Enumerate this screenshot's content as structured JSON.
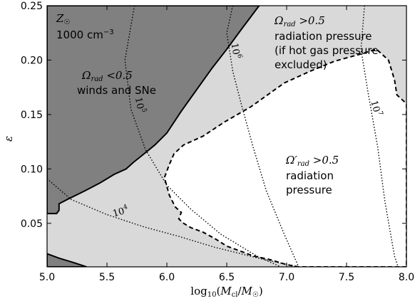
{
  "chart_data": {
    "type": "area",
    "xlabel": "log10(Mcl/M☉)",
    "ylabel": "ε",
    "xlim": [
      5.0,
      8.0
    ],
    "ylim": [
      0.01,
      0.25
    ],
    "x_ticks": [
      "5.0",
      "5.5",
      "6.0",
      "6.5",
      "7.0",
      "7.5",
      "8.0"
    ],
    "y_ticks": [
      "0.05",
      "0.10",
      "0.15",
      "0.20",
      "0.25"
    ],
    "grid": false,
    "corner_label_1": "Z☉",
    "corner_label_2": "1000 cm",
    "corner_label_2_exp": "−3",
    "regions": [
      {
        "name": "winds and SNe",
        "label_math": "Ωrad < 0.5",
        "label_text": "winds and SNe",
        "fill": "#808080",
        "boundary": [
          [
            5.0,
            0.084
          ],
          [
            5.0,
            0.25
          ],
          [
            6.77,
            0.25
          ],
          [
            6.62,
            0.228
          ],
          [
            6.5,
            0.21
          ],
          [
            6.38,
            0.193
          ],
          [
            6.25,
            0.173
          ],
          [
            6.12,
            0.153
          ],
          [
            6.0,
            0.133
          ],
          [
            5.9,
            0.122
          ],
          [
            5.8,
            0.113
          ],
          [
            5.72,
            0.106
          ],
          [
            5.66,
            0.1
          ],
          [
            5.56,
            0.095
          ],
          [
            5.44,
            0.087
          ],
          [
            5.3,
            0.079
          ],
          [
            5.17,
            0.072
          ],
          [
            5.1,
            0.068
          ],
          [
            5.1,
            0.062
          ],
          [
            5.08,
            0.059
          ],
          [
            5.0,
            0.059
          ]
        ]
      },
      {
        "name": "radiation pressure (hot gas excluded)",
        "label_math": "Ωrad > 0.5",
        "label_text": [
          "radiation pressure",
          "(if hot gas pressure",
          "excluded)"
        ],
        "fill": "#d9d9d9"
      },
      {
        "name": "radiation pressure",
        "label_math": "Ω′rad > 0.5",
        "label_text": [
          "radiation",
          "pressure"
        ],
        "fill": "#ffffff",
        "boundary": [
          [
            8.0,
            0.01
          ],
          [
            7.1,
            0.01
          ],
          [
            7.0,
            0.012
          ],
          [
            6.85,
            0.017
          ],
          [
            6.72,
            0.02
          ],
          [
            6.65,
            0.023
          ],
          [
            6.5,
            0.029
          ],
          [
            6.4,
            0.036
          ],
          [
            6.3,
            0.042
          ],
          [
            6.2,
            0.046
          ],
          [
            6.14,
            0.05
          ],
          [
            6.1,
            0.054
          ],
          [
            6.12,
            0.06
          ],
          [
            6.07,
            0.065
          ],
          [
            6.02,
            0.076
          ],
          [
            5.98,
            0.092
          ],
          [
            6.02,
            0.104
          ],
          [
            6.06,
            0.114
          ],
          [
            6.14,
            0.122
          ],
          [
            6.3,
            0.13
          ],
          [
            6.48,
            0.143
          ],
          [
            6.7,
            0.157
          ],
          [
            6.84,
            0.168
          ],
          [
            6.98,
            0.179
          ],
          [
            7.2,
            0.19
          ],
          [
            7.4,
            0.199
          ],
          [
            7.6,
            0.205
          ],
          [
            7.75,
            0.21
          ],
          [
            7.85,
            0.2
          ],
          [
            7.9,
            0.182
          ],
          [
            7.92,
            0.168
          ],
          [
            8.0,
            0.16
          ]
        ]
      }
    ],
    "bottom_band": {
      "fill": "#808080",
      "boundary": [
        [
          5.0,
          0.01
        ],
        [
          5.0,
          0.022
        ],
        [
          5.1,
          0.018
        ],
        [
          5.22,
          0.014
        ],
        [
          5.33,
          0.01
        ]
      ]
    },
    "mass_contours": [
      {
        "label": "10",
        "exp": "4",
        "points": [
          [
            5.0,
            0.091
          ],
          [
            5.2,
            0.072
          ],
          [
            5.5,
            0.058
          ],
          [
            5.8,
            0.047
          ],
          [
            6.1,
            0.038
          ],
          [
            6.4,
            0.028
          ],
          [
            6.8,
            0.017
          ],
          [
            7.1,
            0.01
          ]
        ]
      },
      {
        "label": "10",
        "exp": "5",
        "points": [
          [
            5.73,
            0.25
          ],
          [
            5.65,
            0.2
          ],
          [
            5.7,
            0.155
          ],
          [
            5.82,
            0.118
          ],
          [
            6.0,
            0.085
          ],
          [
            6.2,
            0.063
          ],
          [
            6.45,
            0.04
          ],
          [
            6.75,
            0.02
          ],
          [
            6.95,
            0.01
          ]
        ]
      },
      {
        "label": "10",
        "exp": "6",
        "points": [
          [
            6.55,
            0.25
          ],
          [
            6.5,
            0.225
          ],
          [
            6.55,
            0.19
          ],
          [
            6.62,
            0.16
          ],
          [
            6.72,
            0.12
          ],
          [
            6.83,
            0.08
          ],
          [
            6.98,
            0.04
          ],
          [
            7.1,
            0.01
          ]
        ]
      },
      {
        "label": "10",
        "exp": "7",
        "points": [
          [
            7.65,
            0.25
          ],
          [
            7.62,
            0.21
          ],
          [
            7.68,
            0.17
          ],
          [
            7.76,
            0.12
          ],
          [
            7.82,
            0.07
          ],
          [
            7.9,
            0.02
          ],
          [
            7.93,
            0.01
          ]
        ]
      }
    ]
  }
}
